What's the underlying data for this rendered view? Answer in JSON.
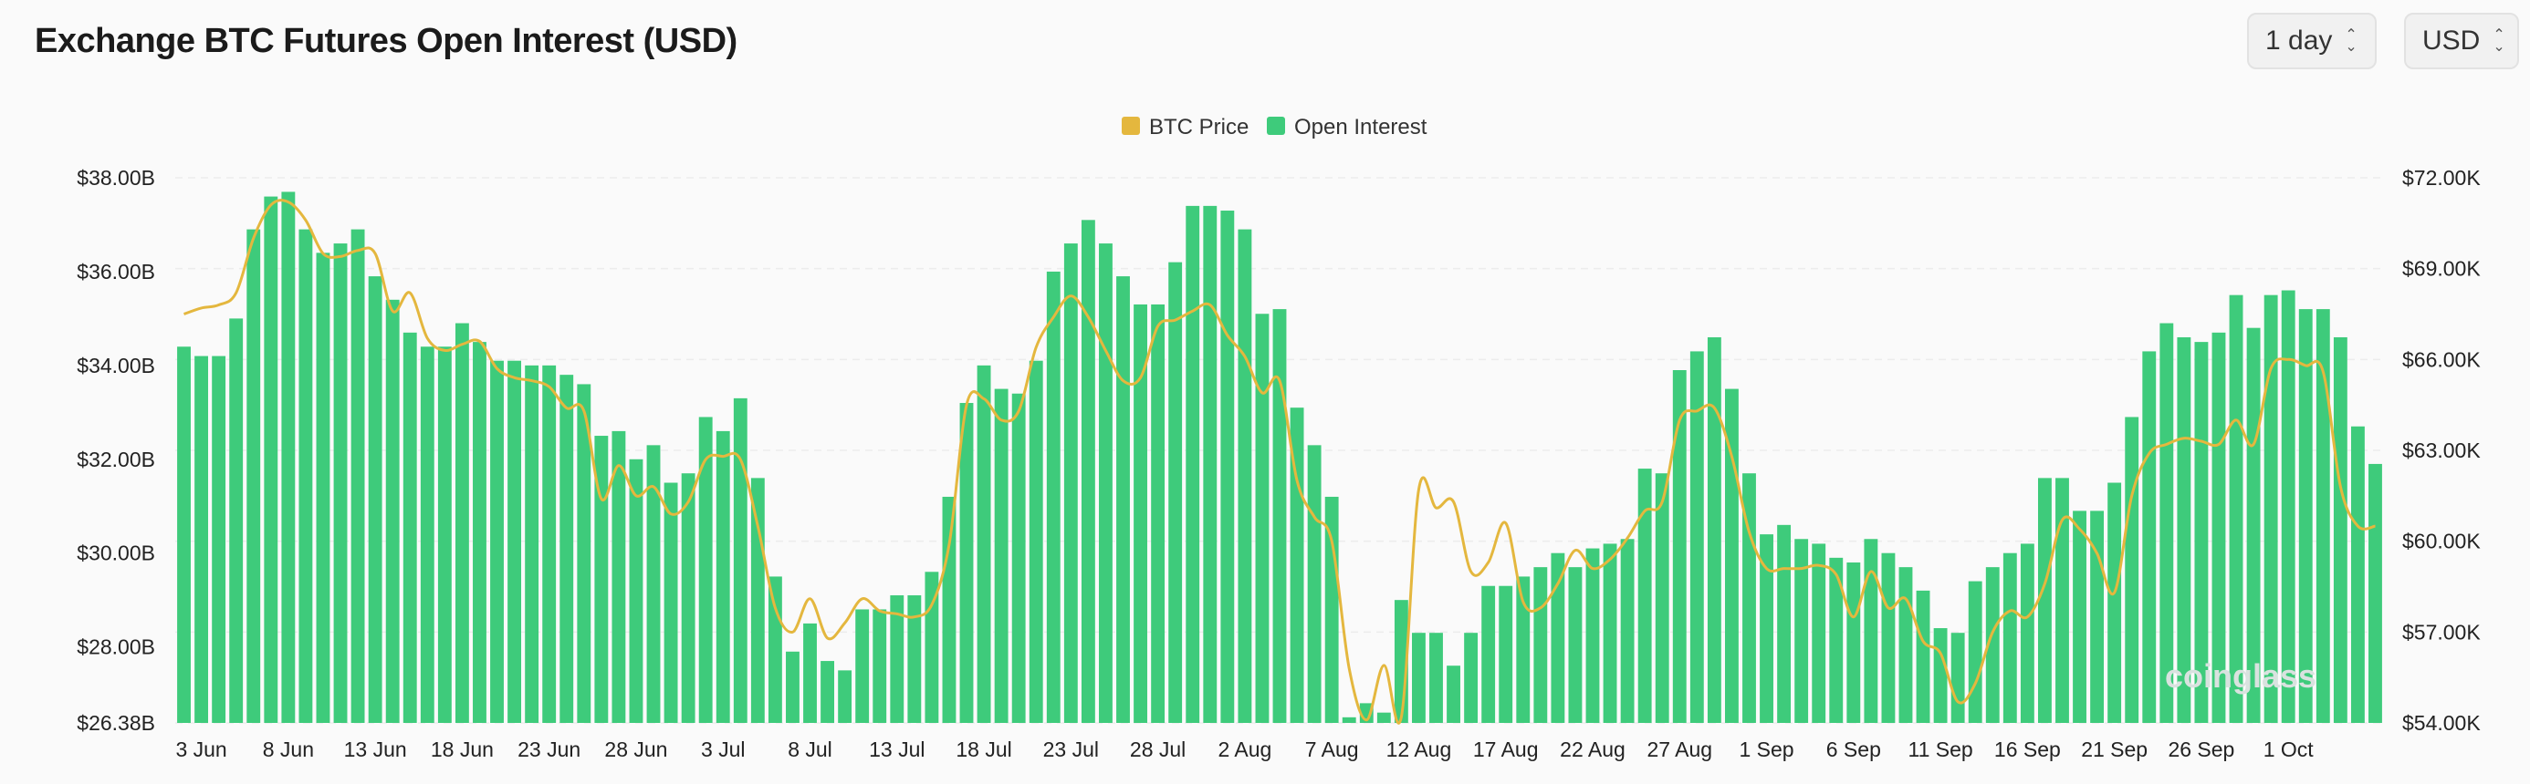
{
  "header": {
    "title": "Exchange BTC Futures Open Interest (USD)",
    "interval": "1 day",
    "currency": "USD"
  },
  "colors": {
    "price": "#E4B73E",
    "oi": "#3ECB7B",
    "grid": "#ececec"
  },
  "chart_data": {
    "type": "bar",
    "title": "",
    "legend": {
      "placement": "top-center",
      "entries": [
        "BTC Price",
        "Open Interest"
      ]
    },
    "x_tick_labels": [
      "3 Jun",
      "8 Jun",
      "13 Jun",
      "18 Jun",
      "23 Jun",
      "28 Jun",
      "3 Jul",
      "8 Jul",
      "13 Jul",
      "18 Jul",
      "23 Jul",
      "28 Jul",
      "2 Aug",
      "7 Aug",
      "12 Aug",
      "17 Aug",
      "22 Aug",
      "27 Aug",
      "1 Sep",
      "6 Sep",
      "11 Sep",
      "16 Sep",
      "21 Sep",
      "26 Sep",
      "1 Oct"
    ],
    "x_tick_index_start": 1,
    "x_tick_index_step": 5,
    "y_left": {
      "min": 26.38,
      "max": 38.0,
      "ticks": [
        26.38,
        28,
        30,
        32,
        34,
        36,
        38
      ],
      "labels": [
        "$26.38B",
        "$28.00B",
        "$30.00B",
        "$32.00B",
        "$34.00B",
        "$36.00B",
        "$38.00B"
      ]
    },
    "y_right": {
      "min": 54000,
      "max": 72000,
      "ticks": [
        54000,
        57000,
        60000,
        63000,
        66000,
        69000,
        72000
      ],
      "labels": [
        "$54.00K",
        "$57.00K",
        "$60.00K",
        "$63.00K",
        "$66.00K",
        "$69.00K",
        "$72.00K"
      ]
    },
    "series": [
      {
        "name": "Open Interest",
        "type": "bar",
        "axis": "left",
        "values": [
          34.4,
          34.2,
          34.2,
          35.0,
          36.9,
          37.6,
          37.7,
          36.9,
          36.4,
          36.6,
          36.9,
          35.9,
          35.4,
          34.7,
          34.4,
          34.4,
          34.9,
          34.5,
          34.1,
          34.1,
          34.0,
          34.0,
          33.8,
          33.6,
          32.5,
          32.6,
          32.0,
          32.3,
          31.5,
          31.7,
          32.9,
          32.6,
          33.3,
          31.6,
          29.5,
          27.9,
          28.5,
          27.7,
          27.5,
          28.8,
          28.8,
          29.1,
          29.1,
          29.6,
          31.2,
          33.2,
          34.0,
          33.5,
          33.4,
          34.1,
          36.0,
          36.6,
          37.1,
          36.6,
          35.9,
          35.3,
          35.3,
          36.2,
          37.4,
          37.4,
          37.3,
          36.9,
          35.1,
          35.2,
          33.1,
          32.3,
          31.2,
          26.5,
          26.8,
          26.6,
          29.0,
          28.3,
          28.3,
          27.6,
          28.3,
          29.3,
          29.3,
          29.5,
          29.7,
          30.0,
          29.7,
          30.1,
          30.2,
          30.3,
          31.8,
          31.7,
          33.9,
          34.3,
          34.6,
          33.5,
          31.7,
          30.4,
          30.6,
          30.3,
          30.2,
          29.9,
          29.8,
          30.3,
          30.0,
          29.7,
          29.2,
          28.4,
          28.3,
          29.4,
          29.7,
          30.0,
          30.2,
          31.6,
          31.6,
          30.9,
          30.9,
          31.5,
          32.9,
          34.3,
          34.9,
          34.6,
          34.5,
          34.7,
          35.5,
          34.8,
          35.5,
          35.6,
          35.2,
          35.2,
          34.6,
          32.7,
          31.9
        ]
      },
      {
        "name": "BTC Price",
        "type": "line",
        "axis": "right",
        "values": [
          67500,
          67700,
          67800,
          68200,
          70000,
          71100,
          71200,
          70600,
          69500,
          69400,
          69600,
          69500,
          67600,
          68200,
          66700,
          66300,
          66500,
          66600,
          65700,
          65400,
          65300,
          65100,
          64400,
          64300,
          61400,
          62500,
          61500,
          61800,
          60900,
          61300,
          62700,
          62800,
          62700,
          60500,
          57800,
          57000,
          58100,
          56800,
          57300,
          58100,
          57700,
          57600,
          57500,
          57900,
          59900,
          64500,
          64700,
          64000,
          64300,
          66400,
          67400,
          68100,
          67400,
          66300,
          65300,
          65400,
          67100,
          67300,
          67600,
          67800,
          66800,
          66100,
          64900,
          65300,
          62000,
          60800,
          60000,
          55800,
          54100,
          55900,
          54200,
          61700,
          61100,
          61300,
          59000,
          59300,
          60600,
          58000,
          57800,
          58600,
          59700,
          59100,
          59400,
          60100,
          61000,
          61300,
          64000,
          64300,
          64400,
          62800,
          60300,
          59100,
          59100,
          59100,
          59200,
          58900,
          57500,
          59000,
          57800,
          58100,
          56700,
          56300,
          54700,
          55300,
          57000,
          57700,
          57500,
          58600,
          60700,
          60400,
          59600,
          58300,
          61500,
          62900,
          63200,
          63400,
          63300,
          63200,
          64000,
          63200,
          65700,
          66000,
          65800,
          65600,
          61800,
          60500,
          60500
        ]
      }
    ]
  },
  "watermark": "coinglass"
}
